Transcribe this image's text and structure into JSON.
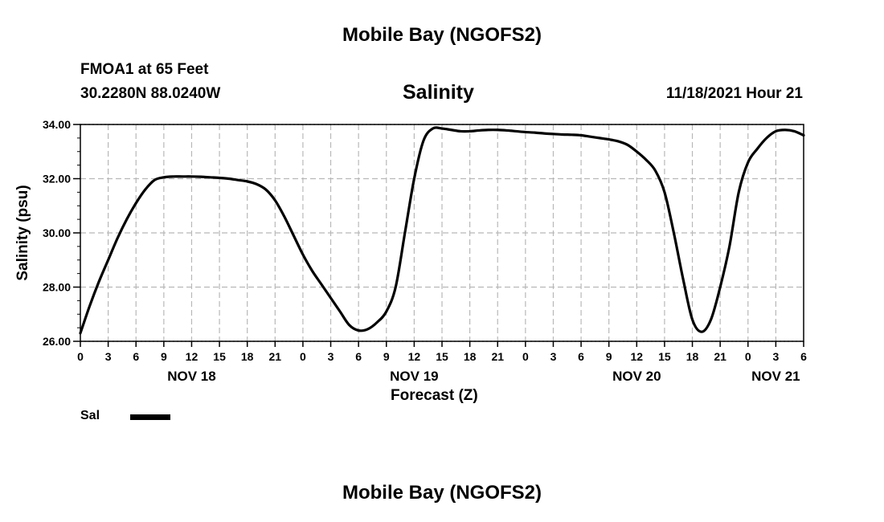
{
  "header": {
    "title": "Mobile Bay (NGOFS2)",
    "station": "FMOA1 at 65 Feet",
    "coords": "30.2280N  88.0240W",
    "timestamp": "11/18/2021 Hour 21"
  },
  "footer": {
    "title": "Mobile Bay (NGOFS2)"
  },
  "legend": {
    "label": "Sal",
    "color": "#000000"
  },
  "chart_data": {
    "type": "line",
    "title": "Salinity",
    "xlabel": "Forecast (Z)",
    "ylabel": "Salinity (psu)",
    "xlim": [
      0,
      78
    ],
    "ylim": [
      26,
      34
    ],
    "grid": true,
    "ytick_values": [
      26,
      28,
      30,
      32,
      34
    ],
    "ytick_labels": [
      "26.00",
      "28.00",
      "30.00",
      "32.00",
      "34.00"
    ],
    "xtick_values": [
      0,
      3,
      6,
      9,
      12,
      15,
      18,
      21,
      24,
      27,
      30,
      33,
      36,
      39,
      42,
      45,
      48,
      51,
      54,
      57,
      60,
      63,
      66,
      69,
      72,
      75,
      78
    ],
    "xtick_labels": [
      "0",
      "3",
      "6",
      "9",
      "12",
      "15",
      "18",
      "21",
      "0",
      "3",
      "6",
      "9",
      "12",
      "15",
      "18",
      "21",
      "0",
      "3",
      "6",
      "9",
      "12",
      "15",
      "18",
      "21",
      "0",
      "3",
      "6"
    ],
    "date_labels": [
      {
        "x": 12,
        "label": "NOV 18"
      },
      {
        "x": 36,
        "label": "NOV 19"
      },
      {
        "x": 60,
        "label": "NOV 20"
      },
      {
        "x": 75,
        "label": "NOV 21"
      }
    ],
    "series": [
      {
        "name": "Sal",
        "x": [
          0,
          1,
          2,
          3,
          4,
          5,
          6,
          7,
          8,
          9,
          10,
          11,
          12,
          13,
          14,
          15,
          16,
          17,
          18,
          19,
          20,
          21,
          22,
          23,
          24,
          25,
          26,
          27,
          28,
          29,
          30,
          31,
          32,
          33,
          34,
          35,
          36,
          37,
          38,
          39,
          40,
          41,
          42,
          43,
          44,
          45,
          46,
          47,
          48,
          49,
          50,
          51,
          52,
          53,
          54,
          55,
          56,
          57,
          58,
          59,
          60,
          61,
          62,
          63,
          64,
          65,
          66,
          67,
          68,
          69,
          70,
          71,
          72,
          73,
          74,
          75,
          76,
          77,
          78
        ],
        "values": [
          26.3,
          27.3,
          28.2,
          29.0,
          29.8,
          30.5,
          31.1,
          31.6,
          31.95,
          32.05,
          32.08,
          32.08,
          32.08,
          32.07,
          32.05,
          32.03,
          32.0,
          31.95,
          31.9,
          31.8,
          31.6,
          31.2,
          30.6,
          29.9,
          29.2,
          28.6,
          28.1,
          27.6,
          27.1,
          26.6,
          26.4,
          26.45,
          26.7,
          27.1,
          28.0,
          30.0,
          32.0,
          33.4,
          33.85,
          33.85,
          33.8,
          33.75,
          33.75,
          33.78,
          33.8,
          33.8,
          33.78,
          33.75,
          33.72,
          33.7,
          33.67,
          33.65,
          33.63,
          33.62,
          33.6,
          33.55,
          33.5,
          33.45,
          33.38,
          33.25,
          33.0,
          32.7,
          32.3,
          31.5,
          30.0,
          28.3,
          26.8,
          26.35,
          26.8,
          28.0,
          29.5,
          31.5,
          32.6,
          33.1,
          33.5,
          33.75,
          33.8,
          33.75,
          33.6
        ]
      }
    ]
  }
}
